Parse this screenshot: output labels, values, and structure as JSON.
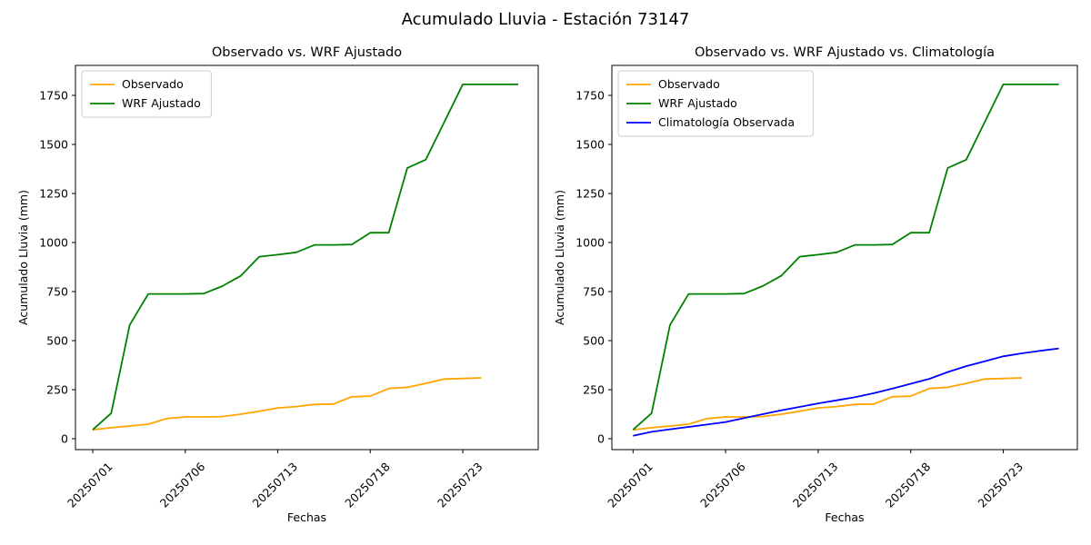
{
  "suptitle": "Acumulado Lluvia - Estación 73147",
  "chart_data": [
    {
      "type": "line",
      "title": "Observado vs. WRF Ajustado",
      "xlabel": "Fechas",
      "ylabel": "Acumulado Lluvia (mm)",
      "yticks": [
        0,
        250,
        500,
        750,
        1000,
        1250,
        1500,
        1750
      ],
      "ylim": [
        -50,
        1900
      ],
      "x_tick_positions": [
        0,
        5,
        10,
        15,
        20
      ],
      "x_tick_labels": [
        "20250701",
        "20250706",
        "20250713",
        "20250718",
        "20250723"
      ],
      "n_points": 24,
      "grid": false,
      "legend_position": "upper left",
      "series": [
        {
          "name": "Observado",
          "color": "#FFA500",
          "values": [
            46,
            56,
            65,
            74,
            103,
            111,
            111,
            113,
            125,
            140,
            157,
            164,
            175,
            177,
            214,
            217,
            256,
            262,
            282,
            304,
            307,
            310
          ]
        },
        {
          "name": "WRF Ajustado",
          "color": "#008000",
          "values": [
            46,
            130,
            580,
            738,
            738,
            738,
            740,
            778,
            830,
            928,
            938,
            950,
            988,
            988,
            990,
            1050,
            1050,
            1380,
            1422,
            1614,
            1806,
            1806,
            1806,
            1806
          ]
        }
      ]
    },
    {
      "type": "line",
      "title": "Observado vs. WRF Ajustado vs. Climatología",
      "xlabel": "Fechas",
      "ylabel": "Acumulado Lluvia (mm)",
      "yticks": [
        0,
        250,
        500,
        750,
        1000,
        1250,
        1500,
        1750
      ],
      "ylim": [
        -50,
        1900
      ],
      "x_tick_positions": [
        0,
        5,
        10,
        15,
        20
      ],
      "x_tick_labels": [
        "20250701",
        "20250706",
        "20250713",
        "20250718",
        "20250723"
      ],
      "n_points": 24,
      "grid": false,
      "legend_position": "upper left",
      "series": [
        {
          "name": "Observado",
          "color": "#FFA500",
          "values": [
            46,
            56,
            65,
            74,
            103,
            111,
            111,
            113,
            125,
            140,
            157,
            164,
            175,
            177,
            214,
            217,
            256,
            262,
            282,
            304,
            307,
            310
          ]
        },
        {
          "name": "WRF Ajustado",
          "color": "#008000",
          "values": [
            46,
            130,
            580,
            738,
            738,
            738,
            740,
            778,
            830,
            928,
            938,
            950,
            988,
            988,
            990,
            1050,
            1050,
            1380,
            1422,
            1614,
            1806,
            1806,
            1806,
            1806
          ]
        },
        {
          "name": "Climatología Observada",
          "color": "#0000FF",
          "values": [
            15,
            35,
            48,
            60,
            72,
            85,
            105,
            125,
            145,
            162,
            180,
            196,
            212,
            232,
            255,
            280,
            305,
            340,
            370,
            395,
            420,
            435,
            448,
            460
          ]
        }
      ]
    }
  ]
}
